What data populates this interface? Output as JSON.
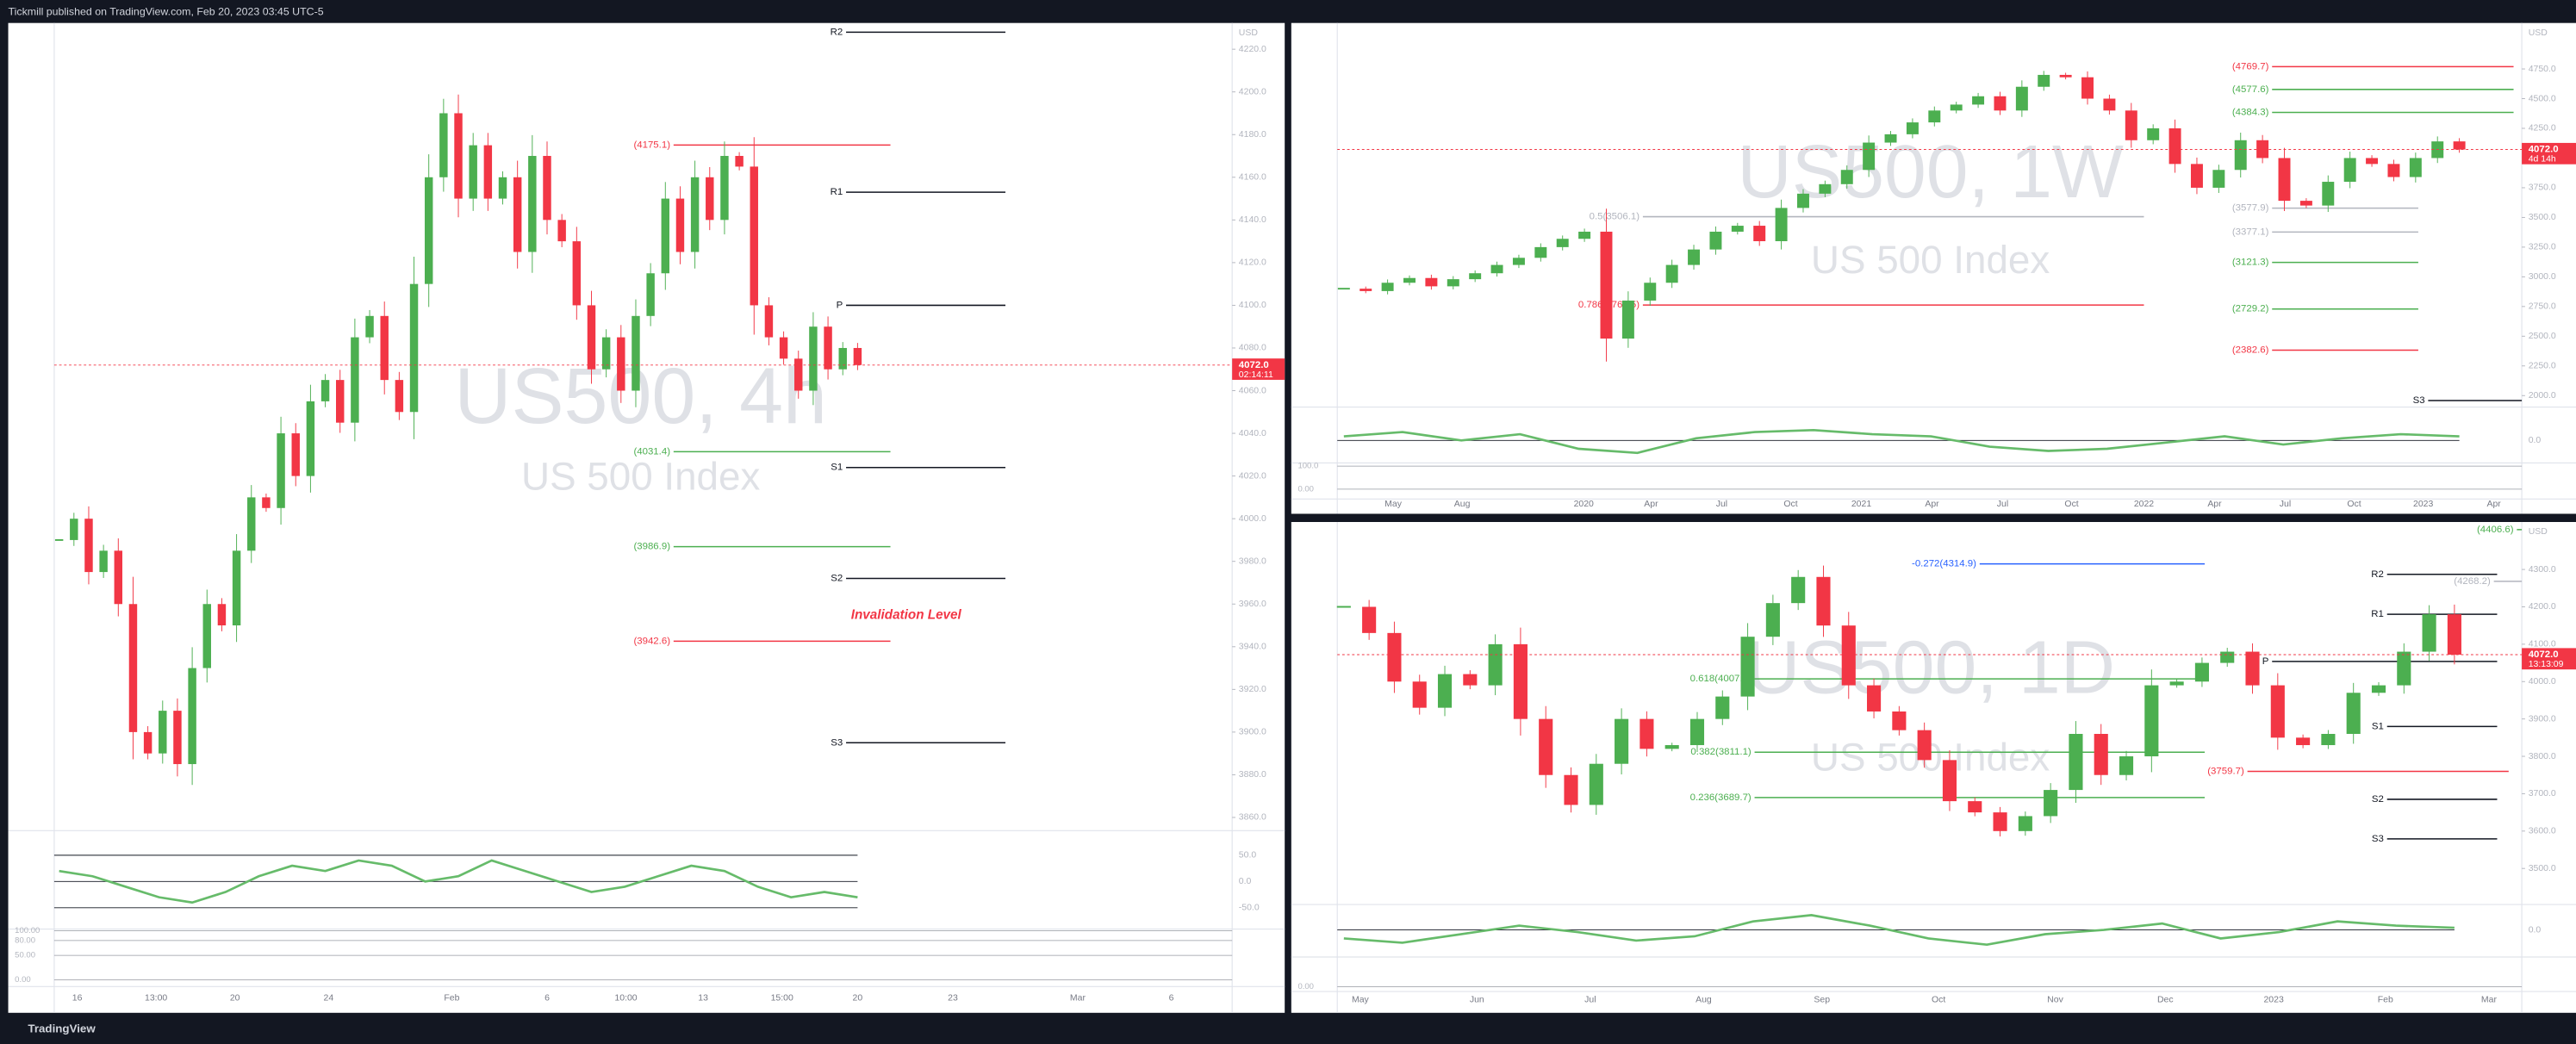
{
  "header": {
    "text": "Tickmill published on TradingView.com, Feb 20, 2023 03:45 UTC-5"
  },
  "footer": {
    "text": "TradingView"
  },
  "chart_data": [
    {
      "type": "candlestick",
      "title": "US500, 4h",
      "subtitle": "US 500 Index",
      "currency": "USD",
      "x_labels": [
        "16",
        "13:00",
        "20",
        "24",
        "Feb",
        "6",
        "10:00",
        "13",
        "15:00",
        "20",
        "23",
        "Mar",
        "6"
      ],
      "values": [
        3990,
        4000,
        3975,
        3985,
        3960,
        3900,
        3890,
        3910,
        3885,
        3930,
        3960,
        3950,
        3985,
        4010,
        4005,
        4040,
        4020,
        4055,
        4065,
        4045,
        4085,
        4095,
        4065,
        4050,
        4110,
        4160,
        4190,
        4150,
        4175,
        4150,
        4160,
        4125,
        4170,
        4140,
        4130,
        4100,
        4070,
        4085,
        4060,
        4095,
        4115,
        4150,
        4125,
        4160,
        4140,
        4170,
        4165,
        4100,
        4085,
        4075,
        4060,
        4090,
        4070,
        4080,
        4072
      ],
      "ylim": [
        3854.6,
        4232.3
      ],
      "yticks": [
        {
          "value": 3860,
          "label": "3860.0"
        },
        {
          "value": 3880,
          "label": "3880.0"
        },
        {
          "value": 3900,
          "label": "3900.0"
        },
        {
          "value": 3920,
          "label": "3920.0"
        },
        {
          "value": 3940,
          "label": "3940.0"
        },
        {
          "value": 3960,
          "label": "3960.0"
        },
        {
          "value": 3980,
          "label": "3980.0"
        },
        {
          "value": 4000,
          "label": "4000.0"
        },
        {
          "value": 4020,
          "label": "4020.0"
        },
        {
          "value": 4040,
          "label": "4040.0"
        },
        {
          "value": 4060,
          "label": "4060.0"
        },
        {
          "value": 4080,
          "label": "4080.0"
        },
        {
          "value": 4100,
          "label": "4100.0"
        },
        {
          "value": 4120,
          "label": "4120.0"
        },
        {
          "value": 4140,
          "label": "4140.0"
        },
        {
          "value": 4160,
          "label": "4160.0"
        },
        {
          "value": 4180,
          "label": "4180.0"
        },
        {
          "value": 4200,
          "label": "4200.0"
        },
        {
          "value": 4220,
          "label": "4220.0"
        }
      ],
      "last_price": {
        "value": 4072,
        "label": "4072.0"
      },
      "countdown": "02:14:11",
      "levels": [
        {
          "label": "R2",
          "value": 4228,
          "color": "#131722"
        },
        {
          "label": "(4175.1)",
          "value": 4175.1,
          "color": "#f23645"
        },
        {
          "label": "R1",
          "value": 4153,
          "color": "#131722"
        },
        {
          "label": "P",
          "value": 4100,
          "color": "#131722"
        },
        {
          "label": "(4031.4)",
          "value": 4031.4,
          "color": "#4caf50"
        },
        {
          "label": "S1",
          "value": 4024,
          "color": "#131722"
        },
        {
          "label": "(3986.9)",
          "value": 3986.9,
          "color": "#4caf50"
        },
        {
          "label": "S2",
          "value": 3972,
          "color": "#131722"
        },
        {
          "label": "(3942.6)",
          "value": 3942.6,
          "color": "#f23645"
        },
        {
          "label": "S3",
          "value": 3895,
          "color": "#131722"
        }
      ],
      "annotations": [
        "Invalidation Level"
      ],
      "oscillator": {
        "values": [
          20,
          10,
          -10,
          -30,
          -40,
          -20,
          10,
          30,
          20,
          40,
          30,
          0,
          10,
          40,
          20,
          0,
          -20,
          -10,
          10,
          30,
          20,
          -10,
          -30,
          -20,
          -30
        ],
        "ylim": [
          -87.5,
          90.6
        ],
        "yticks": [
          {
            "value": 50,
            "label": "50.0"
          },
          {
            "value": 0,
            "label": "0.0"
          },
          {
            "value": -50,
            "label": "-50.0"
          }
        ]
      },
      "stochastic": {
        "ylim": [
          -10,
          103.3
        ],
        "yticks": [
          {
            "value": 100,
            "label": "100.00"
          },
          {
            "value": 80,
            "label": "80.00"
          },
          {
            "value": 50,
            "label": "50.00"
          },
          {
            "value": 0,
            "label": "0.00"
          }
        ]
      }
    },
    {
      "type": "candlestick",
      "title": "US500, 1W",
      "subtitle": "US 500 Index",
      "currency": "USD",
      "x_labels": [
        "May",
        "Aug",
        "2020",
        "Apr",
        "Jul",
        "Oct",
        "2021",
        "Apr",
        "Jul",
        "Oct",
        "2022",
        "Apr",
        "Jul",
        "Oct",
        "2023",
        "Apr"
      ],
      "values": [
        2900,
        2880,
        2950,
        2990,
        2920,
        2980,
        3030,
        3100,
        3160,
        3250,
        3320,
        3380,
        2480,
        2800,
        2950,
        3100,
        3230,
        3380,
        3430,
        3300,
        3580,
        3700,
        3780,
        3900,
        4130,
        4200,
        4300,
        4400,
        4450,
        4520,
        4400,
        4600,
        4700,
        4680,
        4500,
        4400,
        4150,
        4250,
        3950,
        3750,
        3900,
        4150,
        4000,
        3640,
        3600,
        3800,
        4000,
        3950,
        3840,
        4000,
        4140,
        4072
      ],
      "ylim": [
        1917,
        5137
      ],
      "yticks": [
        {
          "value": 2000,
          "label": "2000.0"
        },
        {
          "value": 2250,
          "label": "2250.0"
        },
        {
          "value": 2500,
          "label": "2500.0"
        },
        {
          "value": 2750,
          "label": "2750.0"
        },
        {
          "value": 3000,
          "label": "3000.0"
        },
        {
          "value": 3250,
          "label": "3250.0"
        },
        {
          "value": 3500,
          "label": "3500.0"
        },
        {
          "value": 3750,
          "label": "3750.0"
        },
        {
          "value": 4000,
          "label": "4000.0"
        },
        {
          "value": 4250,
          "label": "4250.0"
        },
        {
          "value": 4500,
          "label": "4500.0"
        },
        {
          "value": 4750,
          "label": "4750.0"
        }
      ],
      "last_price": {
        "value": 4072,
        "label": "4072.0"
      },
      "countdown": "4d 14h",
      "levels": [
        {
          "label": "(4769.7)",
          "value": 4769.7,
          "color": "#f23645"
        },
        {
          "label": "(4577.6)",
          "value": 4577.6,
          "color": "#4caf50"
        },
        {
          "label": "(4384.3)",
          "value": 4384.3,
          "color": "#4caf50"
        },
        {
          "label": "(3577.9)",
          "value": 3577.9,
          "color": "#b2b5be"
        },
        {
          "label": "(3377.1)",
          "value": 3377.1,
          "color": "#b2b5be"
        },
        {
          "label": "(3121.3)",
          "value": 3121.3,
          "color": "#4caf50"
        },
        {
          "label": "(2729.2)",
          "value": 2729.2,
          "color": "#4caf50"
        },
        {
          "label": "(2382.6)",
          "value": 2382.6,
          "color": "#f23645"
        },
        {
          "label": "0.786(2762.5)",
          "value": 2762.5,
          "color": "#f23645"
        },
        {
          "label": "0.5(3506.1)",
          "value": 3506.1,
          "color": "#b2b5be"
        },
        {
          "label": "S3",
          "value": 1958,
          "color": "#131722"
        }
      ],
      "oscillator": {
        "values": [
          10,
          20,
          0,
          15,
          -20,
          -30,
          5,
          20,
          25,
          15,
          10,
          -15,
          -25,
          -20,
          -5,
          10,
          -10,
          5,
          15,
          10
        ],
        "ylim": [
          -50,
          80
        ],
        "yticks": [
          {
            "value": 0,
            "label": "0.0"
          }
        ]
      },
      "stochastic": {
        "ylim": [
          -35.7,
          114
        ],
        "yticks": [
          {
            "value": 100,
            "label": "100.0"
          },
          {
            "value": 0,
            "label": "0.00"
          }
        ]
      }
    },
    {
      "type": "candlestick",
      "title": "US500, 1D",
      "subtitle": "US 500 Index",
      "currency": "USD",
      "x_labels": [
        "May",
        "Jun",
        "Jul",
        "Aug",
        "Sep",
        "Oct",
        "Nov",
        "Dec",
        "2023",
        "Feb",
        "Mar"
      ],
      "values": [
        4200,
        4130,
        4000,
        3930,
        4020,
        3990,
        4100,
        3900,
        3750,
        3670,
        3780,
        3900,
        3820,
        3830,
        3900,
        3960,
        4120,
        4210,
        4280,
        4150,
        3990,
        3920,
        3870,
        3790,
        3680,
        3650,
        3600,
        3640,
        3710,
        3860,
        3750,
        3800,
        3990,
        4000,
        4050,
        4080,
        3990,
        3850,
        3830,
        3860,
        3970,
        3990,
        4080,
        4180,
        4072
      ],
      "ylim": [
        3408,
        4427
      ],
      "yticks": [
        {
          "value": 3500,
          "label": "3500.0"
        },
        {
          "value": 3600,
          "label": "3600.0"
        },
        {
          "value": 3700,
          "label": "3700.0"
        },
        {
          "value": 3800,
          "label": "3800.0"
        },
        {
          "value": 3900,
          "label": "3900.0"
        },
        {
          "value": 4000,
          "label": "4000.0"
        },
        {
          "value": 4100,
          "label": "4100.0"
        },
        {
          "value": 4200,
          "label": "4200.0"
        },
        {
          "value": 4300,
          "label": "4300.0"
        }
      ],
      "last_price": {
        "value": 4072,
        "label": "4072.0"
      },
      "countdown": "13:13:09",
      "levels": [
        {
          "label": "(4406.6)",
          "value": 4406.6,
          "color": "#4caf50"
        },
        {
          "label": "-0.272(4314.9)",
          "value": 4314.9,
          "color": "#2962ff"
        },
        {
          "label": "(4268.2)",
          "value": 4268.2,
          "color": "#b2b5be"
        },
        {
          "label": "(3759.7)",
          "value": 3759.7,
          "color": "#f23645"
        },
        {
          "label": "0.618(4007.2)",
          "value": 4007.2,
          "color": "#4caf50"
        },
        {
          "label": "0.382(3811.1)",
          "value": 3811.1,
          "color": "#4caf50"
        },
        {
          "label": "0.236(3689.7)",
          "value": 3689.7,
          "color": "#4caf50"
        },
        {
          "label": "R2",
          "value": 4287,
          "color": "#131722"
        },
        {
          "label": "R1",
          "value": 4180,
          "color": "#131722"
        },
        {
          "label": "P",
          "value": 4054,
          "color": "#131722"
        },
        {
          "label": "S1",
          "value": 3880,
          "color": "#131722"
        },
        {
          "label": "S2",
          "value": 3685,
          "color": "#131722"
        },
        {
          "label": "S3",
          "value": 3579,
          "color": "#131722"
        }
      ],
      "oscillator": {
        "values": [
          -20,
          -30,
          -10,
          10,
          -5,
          -25,
          -15,
          20,
          35,
          10,
          -20,
          -35,
          -10,
          0,
          15,
          -20,
          -5,
          20,
          10,
          5
        ],
        "ylim": [
          -60,
          60
        ],
        "yticks": [
          {
            "value": 0,
            "label": "0.0"
          }
        ]
      },
      "stochastic": {
        "ylim": [
          -10,
          100
        ],
        "yticks": [
          {
            "value": 0,
            "label": "0.00"
          }
        ]
      }
    }
  ]
}
